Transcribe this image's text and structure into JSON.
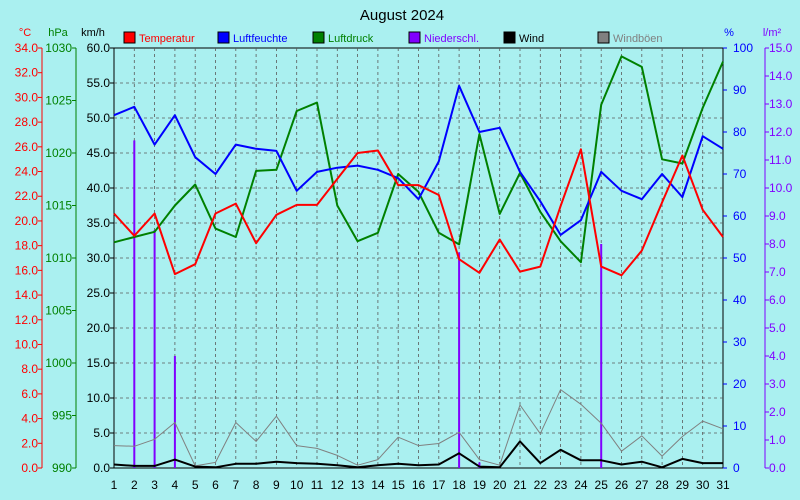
{
  "chart_data": {
    "type": "line",
    "title": "August 2024",
    "x": [
      1,
      2,
      3,
      4,
      5,
      6,
      7,
      8,
      9,
      10,
      11,
      12,
      13,
      14,
      15,
      16,
      17,
      18,
      19,
      20,
      21,
      22,
      23,
      24,
      25,
      26,
      27,
      28,
      29,
      30,
      31
    ],
    "units": {
      "temperature": "°C",
      "pressure": "hPa",
      "wind": "km/h",
      "humidity": "%",
      "precip": "l/m²"
    },
    "axes": {
      "temperature": {
        "min": 0,
        "max": 34,
        "ticks": [
          "0.0",
          "2.0",
          "4.0",
          "6.0",
          "8.0",
          "10.0",
          "12.0",
          "14.0",
          "16.0",
          "18.0",
          "20.0",
          "22.0",
          "24.0",
          "26.0",
          "28.0",
          "30.0",
          "32.0",
          "34.0"
        ],
        "color": "#ff0000"
      },
      "pressure": {
        "min": 990,
        "max": 1030,
        "ticks": [
          "990",
          "995",
          "1000",
          "1005",
          "1010",
          "1015",
          "1020",
          "1025",
          "1030"
        ],
        "color": "#008000"
      },
      "wind": {
        "min": 0,
        "max": 60,
        "ticks": [
          "0.0",
          "5.0",
          "10.0",
          "15.0",
          "20.0",
          "25.0",
          "30.0",
          "35.0",
          "40.0",
          "45.0",
          "50.0",
          "55.0",
          "60.0"
        ],
        "color": "#000000"
      },
      "humidity": {
        "min": 0,
        "max": 100,
        "ticks": [
          "0",
          "10",
          "20",
          "30",
          "40",
          "50",
          "60",
          "70",
          "80",
          "90",
          "100"
        ],
        "color": "#0000ff"
      },
      "precip": {
        "min": 0,
        "max": 15,
        "ticks": [
          "0.0",
          "1.0",
          "2.0",
          "3.0",
          "4.0",
          "5.0",
          "6.0",
          "7.0",
          "8.0",
          "9.0",
          "10.0",
          "11.0",
          "12.0",
          "13.0",
          "14.0",
          "15.0"
        ],
        "color": "#8000ff"
      }
    },
    "grid": true,
    "legend_position": "top",
    "series": [
      {
        "key": "temp",
        "name": "Temperatur",
        "color": "#ff0000",
        "axis": "temperature",
        "kind": "line",
        "width": 2,
        "values": [
          20.6,
          18.8,
          20.6,
          15.7,
          16.5,
          20.6,
          21.4,
          18.2,
          20.5,
          21.3,
          21.3,
          23.4,
          25.5,
          25.7,
          22.9,
          22.9,
          22.1,
          16.9,
          15.8,
          18.5,
          15.9,
          16.3,
          21.2,
          25.8,
          16.3,
          15.6,
          17.6,
          21.5,
          25.3,
          20.9,
          18.7
        ]
      },
      {
        "key": "humidity",
        "name": "Luftfeuchte",
        "color": "#0000ff",
        "axis": "humidity",
        "kind": "line",
        "width": 2,
        "values": [
          84,
          86,
          77,
          84,
          74,
          70,
          77,
          76,
          75.5,
          66,
          70.5,
          71.5,
          72,
          71,
          69,
          64,
          73,
          91,
          80,
          81,
          70.5,
          63.5,
          55.5,
          59,
          70.5,
          66,
          64,
          70,
          64.5,
          79,
          76
        ]
      },
      {
        "key": "pressure",
        "name": "Luftdruck",
        "color": "#008000",
        "axis": "pressure",
        "kind": "line",
        "width": 2,
        "values": [
          1011.5,
          1012,
          1012.5,
          1015,
          1017,
          1012.8,
          1012,
          1018.3,
          1018.4,
          1024,
          1024.8,
          1015,
          1011.6,
          1012.4,
          1018,
          1016.3,
          1012.4,
          1011.3,
          1021.8,
          1014.2,
          1018.1,
          1014.4,
          1011.6,
          1009.6,
          1024.6,
          1029.2,
          1028.2,
          1019.4,
          1019,
          1024.3,
          1028.7
        ]
      },
      {
        "key": "precip",
        "name": "Niederschl.",
        "color": "#8000ff",
        "axis": "precip",
        "kind": "bar",
        "width": 2,
        "values": [
          0,
          11.7,
          8.5,
          4.0,
          0,
          0,
          0,
          0,
          0,
          0,
          0,
          0,
          0,
          0,
          0,
          0,
          0,
          7.7,
          0.2,
          0,
          0,
          0,
          0,
          0,
          8.0,
          0,
          0,
          0,
          0,
          0,
          0
        ]
      },
      {
        "key": "wind",
        "name": "Wind",
        "color": "#000000",
        "axis": "wind",
        "kind": "line",
        "width": 2,
        "values": [
          0.5,
          0.3,
          0.3,
          1.2,
          0.2,
          0.1,
          0.6,
          0.6,
          0.9,
          0.7,
          0.6,
          0.4,
          0.1,
          0.4,
          0.6,
          0.4,
          0.5,
          2.1,
          0.2,
          0.1,
          3.8,
          0.7,
          2.6,
          1.1,
          1.1,
          0.5,
          0.9,
          0.1,
          1.3,
          0.7,
          0.7
        ]
      },
      {
        "key": "gust",
        "name": "Windböen",
        "color": "#808080",
        "axis": "wind",
        "kind": "line",
        "width": 1,
        "values": [
          3.2,
          3.1,
          4.1,
          6.5,
          0.3,
          0.8,
          6.5,
          3.8,
          7.4,
          3.2,
          2.8,
          1.8,
          0.4,
          1.2,
          4.4,
          3.2,
          3.5,
          5.1,
          1.2,
          0.4,
          9.0,
          4.9,
          11.2,
          9.1,
          6.4,
          2.4,
          4.6,
          1.7,
          4.5,
          6.7,
          5.6
        ]
      }
    ]
  }
}
